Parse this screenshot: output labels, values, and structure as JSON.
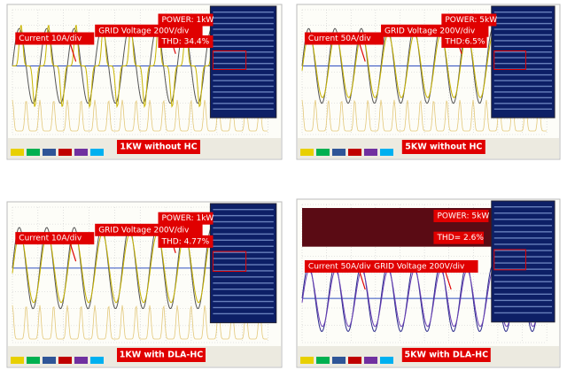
{
  "panels": [
    {
      "current": "Current 10A/div",
      "voltage": "GRID Voltage 200V/div",
      "power": "POWER: 1kW",
      "thd": "THD: 34.4%",
      "caption": "1KW without HC"
    },
    {
      "current": "Current 50A/div",
      "voltage": "GRID Voltage 200V/div",
      "power": "POWER: 5kW",
      "thd": "THD:6.5%",
      "caption": "5KW without HC"
    },
    {
      "current": "Current 10A/div",
      "voltage": "GRID Voltage 200V/div",
      "power": "POWER: 1kW",
      "thd": "THD: 4.77%",
      "caption": "1KW with DLA-HC"
    },
    {
      "current": "Current 50A/div",
      "voltage": "GRID Voltage 200V/div",
      "power": "POWER: 5kW",
      "thd": "THD= 2.6%",
      "caption": "5KW with DLA-HC"
    }
  ]
}
